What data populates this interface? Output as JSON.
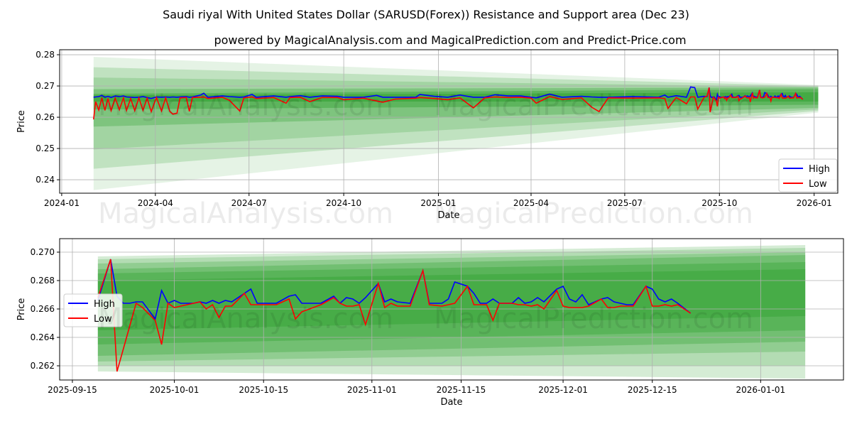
{
  "title": "Saudi riyal With United States Dollar (SARUSD(Forex)) Resistance and Support area (Dec 23)",
  "subtitle": "powered by MagicalAnalysis.com and MagicalPrediction.com and Predict-Price.com",
  "watermarks": [
    "MagicalAnalysis.com",
    "MagicalPrediction.com"
  ],
  "colors": {
    "high": "#0000ff",
    "low": "#ff0000",
    "band": "#2ca02c",
    "grid": "#b0b0b0"
  },
  "chart_data": [
    {
      "type": "line",
      "name": "full-history",
      "xlabel": "Date",
      "ylabel": "Price",
      "xlim": [
        "2023-12-30",
        "2026-01-24"
      ],
      "ylim": [
        0.2357,
        0.2816
      ],
      "grid": true,
      "legend": {
        "placement": "lower-right",
        "entries": [
          "High",
          "Low"
        ]
      },
      "xticks": [
        "2024-01",
        "2024-04",
        "2024-07",
        "2024-10",
        "2025-01",
        "2025-04",
        "2025-07",
        "2025-10",
        "2026-01"
      ],
      "yticks": [
        "0.24",
        "0.25",
        "0.26",
        "0.27",
        "0.28"
      ],
      "includes_recent_series": true,
      "series_points": [
        [
          "2024-02-01",
          0.2664,
          0.2593
        ],
        [
          "2024-02-03",
          0.2665,
          0.265
        ],
        [
          "2024-02-06",
          0.2666,
          0.2623
        ],
        [
          "2024-02-09",
          0.267,
          0.2662
        ],
        [
          "2024-02-12",
          0.2664,
          0.2622
        ],
        [
          "2024-02-15",
          0.2667,
          0.266
        ],
        [
          "2024-02-18",
          0.2663,
          0.2621
        ],
        [
          "2024-02-22",
          0.2668,
          0.2661
        ],
        [
          "2024-02-26",
          0.2666,
          0.2624
        ],
        [
          "2024-03-01",
          0.2668,
          0.2662
        ],
        [
          "2024-03-04",
          0.2665,
          0.2622
        ],
        [
          "2024-03-08",
          0.2664,
          0.266
        ],
        [
          "2024-03-12",
          0.2663,
          0.2621
        ],
        [
          "2024-03-16",
          0.2664,
          0.2662
        ],
        [
          "2024-03-20",
          0.2666,
          0.2622
        ],
        [
          "2024-03-24",
          0.2663,
          0.2661
        ],
        [
          "2024-03-28",
          0.266,
          0.2618
        ],
        [
          "2024-04-02",
          0.2665,
          0.2663
        ],
        [
          "2024-04-07",
          0.2664,
          0.262
        ],
        [
          "2024-04-11",
          0.2665,
          0.2662
        ],
        [
          "2024-04-15",
          0.2664,
          0.2619
        ],
        [
          "2024-04-18",
          0.2665,
          0.261
        ],
        [
          "2024-04-22",
          0.2664,
          0.2613
        ],
        [
          "2024-04-25",
          0.2665,
          0.2662
        ],
        [
          "2024-05-01",
          0.2666,
          0.2663
        ],
        [
          "2024-05-04",
          0.2664,
          0.2619
        ],
        [
          "2024-05-07",
          0.2665,
          0.2663
        ],
        [
          "2024-05-15",
          0.2671,
          0.2664
        ],
        [
          "2024-05-18",
          0.2677,
          0.2665
        ],
        [
          "2024-05-22",
          0.2664,
          0.266
        ],
        [
          "2024-06-05",
          0.2668,
          0.2664
        ],
        [
          "2024-06-12",
          0.2666,
          0.2654
        ],
        [
          "2024-06-22",
          0.2664,
          0.262
        ],
        [
          "2024-06-26",
          0.2665,
          0.2662
        ],
        [
          "2024-07-04",
          0.2673,
          0.2665
        ],
        [
          "2024-07-08",
          0.2664,
          0.266
        ],
        [
          "2024-07-25",
          0.2668,
          0.2663
        ],
        [
          "2024-08-06",
          0.2664,
          0.2645
        ],
        [
          "2024-08-10",
          0.2666,
          0.2663
        ],
        [
          "2024-08-20",
          0.2669,
          0.2664
        ],
        [
          "2024-08-29",
          0.2664,
          0.265
        ],
        [
          "2024-09-10",
          0.2668,
          0.2663
        ],
        [
          "2024-09-25",
          0.2667,
          0.2663
        ],
        [
          "2024-10-01",
          0.2664,
          0.2656
        ],
        [
          "2024-10-20",
          0.2664,
          0.2661
        ],
        [
          "2024-11-02",
          0.267,
          0.2652
        ],
        [
          "2024-11-08",
          0.2664,
          0.2648
        ],
        [
          "2024-11-20",
          0.2664,
          0.2658
        ],
        [
          "2024-12-10",
          0.2664,
          0.2661
        ],
        [
          "2024-12-14",
          0.2673,
          0.2663
        ],
        [
          "2024-12-28",
          0.2667,
          0.266
        ],
        [
          "2025-01-10",
          0.2664,
          0.2656
        ],
        [
          "2025-01-22",
          0.2671,
          0.2662
        ],
        [
          "2025-02-04",
          0.2664,
          0.263
        ],
        [
          "2025-02-15",
          0.2664,
          0.2662
        ],
        [
          "2025-02-25",
          0.2672,
          0.2665
        ],
        [
          "2025-03-10",
          0.2668,
          0.2663
        ],
        [
          "2025-03-22",
          0.2668,
          0.2664
        ],
        [
          "2025-04-01",
          0.2664,
          0.2661
        ],
        [
          "2025-04-06",
          0.2662,
          0.2645
        ],
        [
          "2025-04-19",
          0.2674,
          0.2666
        ],
        [
          "2025-05-01",
          0.2664,
          0.2657
        ],
        [
          "2025-05-20",
          0.2667,
          0.2662
        ],
        [
          "2025-05-30",
          0.2665,
          0.2632
        ],
        [
          "2025-06-06",
          0.2664,
          0.2618
        ],
        [
          "2025-06-15",
          0.2664,
          0.2662
        ],
        [
          "2025-07-10",
          0.2666,
          0.2661
        ],
        [
          "2025-08-03",
          0.2664,
          0.2662
        ],
        [
          "2025-08-09",
          0.2671,
          0.266
        ],
        [
          "2025-08-12",
          0.2664,
          0.2628
        ],
        [
          "2025-08-20",
          0.2669,
          0.2663
        ],
        [
          "2025-08-30",
          0.2664,
          0.2643
        ],
        [
          "2025-09-03",
          0.2697,
          0.2665
        ],
        [
          "2025-09-07",
          0.2695,
          0.2665
        ],
        [
          "2025-09-10",
          0.2664,
          0.2626
        ],
        [
          "2025-09-16",
          0.2667,
          0.2663
        ]
      ],
      "bands": [
        {
          "from": "2024-02-01",
          "to": "2026-01-05",
          "start": [
            0.2367,
            0.2793
          ],
          "end": [
            0.2615,
            0.2703
          ],
          "opacity": 0.12
        },
        {
          "from": "2024-02-01",
          "to": "2026-01-05",
          "start": [
            0.2435,
            0.276
          ],
          "end": [
            0.262,
            0.27
          ],
          "opacity": 0.2
        },
        {
          "from": "2024-02-01",
          "to": "2026-01-05",
          "start": [
            0.2497,
            0.2727
          ],
          "end": [
            0.2625,
            0.2697
          ],
          "opacity": 0.2
        },
        {
          "from": "2024-02-01",
          "to": "2026-01-05",
          "start": [
            0.257,
            0.269
          ],
          "end": [
            0.263,
            0.2695
          ],
          "opacity": 0.3
        },
        {
          "from": "2024-02-01",
          "to": "2026-01-05",
          "start": [
            0.2625,
            0.2675
          ],
          "end": [
            0.264,
            0.269
          ],
          "opacity": 0.4
        },
        {
          "from": "2024-02-01",
          "to": "2026-01-05",
          "start": [
            0.265,
            0.267
          ],
          "end": [
            0.265,
            0.268
          ],
          "opacity": 0.5
        }
      ]
    },
    {
      "type": "line",
      "name": "recent",
      "xlabel": "Date",
      "ylabel": "Price",
      "xlim": [
        "2025-09-13",
        "2026-01-14"
      ],
      "ylim": [
        0.261,
        0.27095
      ],
      "grid": true,
      "legend": {
        "placement": "center-left",
        "entries": [
          "High",
          "Low"
        ]
      },
      "xticks": [
        "2025-09-15",
        "2025-10-01",
        "2025-10-15",
        "2025-11-01",
        "2025-11-15",
        "2025-12-01",
        "2025-12-15",
        "2026-01-01"
      ],
      "yticks": [
        "0.262",
        "0.264",
        "0.266",
        "0.268",
        "0.270"
      ],
      "series_points": [
        [
          "2025-09-19",
          0.2666,
          0.2668
        ],
        [
          "2025-09-21",
          0.2695,
          0.2695
        ],
        [
          "2025-09-22",
          0.2669,
          0.2616
        ],
        [
          "2025-09-23",
          0.2664,
          0.2632
        ],
        [
          "2025-09-24",
          0.2664,
          0.2648
        ],
        [
          "2025-09-25",
          0.2665,
          0.2664
        ],
        [
          "2025-09-26",
          0.2665,
          0.2661
        ],
        [
          "2025-09-28",
          0.2653,
          0.2652
        ],
        [
          "2025-09-29",
          0.2673,
          0.2635
        ],
        [
          "2025-09-30",
          0.2664,
          0.2664
        ],
        [
          "2025-10-01",
          0.2666,
          0.2661
        ],
        [
          "2025-10-02",
          0.2664,
          0.2662
        ],
        [
          "2025-10-04",
          0.2664,
          0.2664
        ],
        [
          "2025-10-05",
          0.2665,
          0.2665
        ],
        [
          "2025-10-06",
          0.2664,
          0.266
        ],
        [
          "2025-10-07",
          0.2666,
          0.2663
        ],
        [
          "2025-10-08",
          0.2664,
          0.2654
        ],
        [
          "2025-10-09",
          0.2666,
          0.2662
        ],
        [
          "2025-10-10",
          0.2665,
          0.2662
        ],
        [
          "2025-10-12",
          0.2671,
          0.2671
        ],
        [
          "2025-10-13",
          0.2674,
          0.2663
        ],
        [
          "2025-10-14",
          0.2664,
          0.2663
        ],
        [
          "2025-10-17",
          0.2664,
          0.2663
        ],
        [
          "2025-10-19",
          0.2669,
          0.2667
        ],
        [
          "2025-10-20",
          0.267,
          0.2653
        ],
        [
          "2025-10-21",
          0.2664,
          0.2658
        ],
        [
          "2025-10-24",
          0.2664,
          0.2663
        ],
        [
          "2025-10-26",
          0.2669,
          0.2668
        ],
        [
          "2025-10-27",
          0.2664,
          0.2664
        ],
        [
          "2025-10-28",
          0.2668,
          0.2662
        ],
        [
          "2025-10-29",
          0.2667,
          0.2662
        ],
        [
          "2025-10-30",
          0.2664,
          0.2663
        ],
        [
          "2025-10-31",
          0.2668,
          0.2649
        ],
        [
          "2025-11-02",
          0.2678,
          0.2678
        ],
        [
          "2025-11-03",
          0.2665,
          0.2661
        ],
        [
          "2025-11-04",
          0.2667,
          0.2664
        ],
        [
          "2025-11-05",
          0.2665,
          0.2662
        ],
        [
          "2025-11-07",
          0.2664,
          0.2662
        ],
        [
          "2025-11-09",
          0.2687,
          0.2687
        ],
        [
          "2025-11-10",
          0.2664,
          0.2663
        ],
        [
          "2025-11-12",
          0.2664,
          0.2662
        ],
        [
          "2025-11-13",
          0.2667,
          0.2663
        ],
        [
          "2025-11-14",
          0.2679,
          0.2664
        ],
        [
          "2025-11-16",
          0.2676,
          0.2676
        ],
        [
          "2025-11-17",
          0.2671,
          0.2663
        ],
        [
          "2025-11-18",
          0.2664,
          0.2663
        ],
        [
          "2025-11-19",
          0.2664,
          0.2663
        ],
        [
          "2025-11-20",
          0.2667,
          0.2652
        ],
        [
          "2025-11-21",
          0.2664,
          0.2664
        ],
        [
          "2025-11-23",
          0.2664,
          0.2664
        ],
        [
          "2025-11-24",
          0.2668,
          0.2663
        ],
        [
          "2025-11-25",
          0.2664,
          0.2663
        ],
        [
          "2025-11-26",
          0.2665,
          0.2662
        ],
        [
          "2025-11-27",
          0.2668,
          0.2663
        ],
        [
          "2025-11-28",
          0.2665,
          0.266
        ],
        [
          "2025-11-30",
          0.2674,
          0.2673
        ],
        [
          "2025-12-01",
          0.2676,
          0.2662
        ],
        [
          "2025-12-02",
          0.2667,
          0.2661
        ],
        [
          "2025-12-03",
          0.2665,
          0.2661
        ],
        [
          "2025-12-04",
          0.267,
          0.2661
        ],
        [
          "2025-12-05",
          0.2663,
          0.2662
        ],
        [
          "2025-12-07",
          0.2667,
          0.2667
        ],
        [
          "2025-12-08",
          0.2668,
          0.2661
        ],
        [
          "2025-12-09",
          0.2665,
          0.2661
        ],
        [
          "2025-12-10",
          0.2664,
          0.2662
        ],
        [
          "2025-12-11",
          0.2663,
          0.2662
        ],
        [
          "2025-12-12",
          0.2663,
          0.2662
        ],
        [
          "2025-12-14",
          0.2676,
          0.2676
        ],
        [
          "2025-12-15",
          0.2674,
          0.2662
        ],
        [
          "2025-12-16",
          0.2667,
          0.2662
        ],
        [
          "2025-12-17",
          0.2665,
          0.2663
        ],
        [
          "2025-12-18",
          0.2667,
          0.2662
        ],
        [
          "2025-12-19",
          0.2664,
          0.2663
        ],
        [
          "2025-12-21",
          0.2657,
          0.2657
        ]
      ],
      "bands": [
        {
          "from": "2025-09-19",
          "to": "2026-01-08",
          "start": [
            0.2616,
            0.2697
          ],
          "end": [
            0.2611,
            0.2705
          ],
          "opacity": 0.2
        },
        {
          "from": "2025-09-19",
          "to": "2026-01-08",
          "start": [
            0.262,
            0.2695
          ],
          "end": [
            0.262,
            0.2703
          ],
          "opacity": 0.2
        },
        {
          "from": "2025-09-19",
          "to": "2026-01-08",
          "start": [
            0.2623,
            0.2692
          ],
          "end": [
            0.263,
            0.27
          ],
          "opacity": 0.25
        },
        {
          "from": "2025-09-19",
          "to": "2026-01-08",
          "start": [
            0.2627,
            0.2688
          ],
          "end": [
            0.2637,
            0.2698
          ],
          "opacity": 0.3
        },
        {
          "from": "2025-09-19",
          "to": "2026-01-08",
          "start": [
            0.2635,
            0.2685
          ],
          "end": [
            0.2645,
            0.2693
          ],
          "opacity": 0.35
        },
        {
          "from": "2025-09-19",
          "to": "2026-01-08",
          "start": [
            0.2645,
            0.268
          ],
          "end": [
            0.2655,
            0.2688
          ],
          "opacity": 0.4
        }
      ]
    }
  ]
}
